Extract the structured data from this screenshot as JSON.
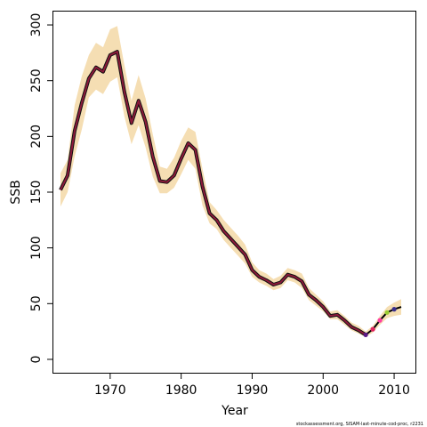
{
  "chart_data": {
    "type": "line",
    "title": "",
    "xlabel": "Year",
    "ylabel": "SSB",
    "xlim": [
      1962,
      2013
    ],
    "ylim": [
      -12,
      312
    ],
    "xticks": [
      1970,
      1980,
      1990,
      2000,
      2010
    ],
    "yticks": [
      0,
      50,
      100,
      150,
      200,
      250,
      300
    ],
    "grid": false,
    "caption": "stockassessment.org, SISAM-last-minute-cod-proc, r2231",
    "band_color": "#f5deb3",
    "line_color": "#8b1a3a",
    "tail_color": "#000000",
    "series": [
      {
        "x": [
          1963,
          1964,
          1965,
          1966,
          1967,
          1968,
          1969,
          1970,
          1971,
          1972,
          1973,
          1974,
          1975,
          1976,
          1977,
          1978,
          1979,
          1980,
          1981,
          1982,
          1983,
          1984,
          1985,
          1986,
          1987,
          1988,
          1989,
          1990,
          1991,
          1992,
          1993,
          1994,
          1995,
          1996,
          1997,
          1998,
          1999,
          2000,
          2001,
          2002,
          2003,
          2004,
          2005,
          2006
        ],
        "y": [
          152,
          165,
          205,
          230,
          252,
          262,
          258,
          273,
          276,
          240,
          212,
          232,
          213,
          182,
          160,
          159,
          165,
          180,
          194,
          188,
          155,
          131,
          125,
          115,
          108,
          101,
          94,
          80,
          74,
          71,
          67,
          69,
          76,
          74,
          70,
          58,
          53,
          47,
          39,
          40,
          35,
          29,
          26,
          22
        ],
        "lower": [
          137,
          150,
          182,
          206,
          235,
          242,
          238,
          249,
          253,
          218,
          193,
          210,
          190,
          164,
          149,
          149,
          154,
          166,
          179,
          171,
          138,
          122,
          117,
          107,
          100,
          93,
          86,
          74,
          69,
          66,
          62,
          64,
          71,
          69,
          64,
          53,
          48,
          43,
          36,
          36,
          31,
          26,
          23,
          20
        ],
        "upper": [
          167,
          179,
          228,
          254,
          273,
          284,
          280,
          296,
          299,
          264,
          232,
          255,
          234,
          202,
          173,
          171,
          181,
          196,
          208,
          204,
          171,
          141,
          134,
          125,
          118,
          111,
          103,
          87,
          80,
          77,
          72,
          75,
          82,
          80,
          77,
          64,
          58,
          52,
          43,
          44,
          39,
          33,
          30,
          25
        ]
      }
    ],
    "tail": {
      "x": [
        2006,
        2007,
        2008,
        2009,
        2010,
        2011
      ],
      "y": [
        22,
        27,
        35,
        42,
        45,
        47
      ],
      "lower": [
        20,
        24,
        31,
        37,
        39,
        40
      ],
      "upper": [
        25,
        30,
        39,
        47,
        51,
        54
      ]
    },
    "points": [
      {
        "x": 2006,
        "y": 22,
        "color": "#5a1a86"
      },
      {
        "x": 2007,
        "y": 27,
        "color": "#e0245e"
      },
      {
        "x": 2008,
        "y": 35,
        "color": "#ff3fa4"
      },
      {
        "x": 2009,
        "y": 42,
        "color": "#9acd32"
      },
      {
        "x": 2010,
        "y": 45,
        "color": "#3a2f8c"
      }
    ]
  }
}
